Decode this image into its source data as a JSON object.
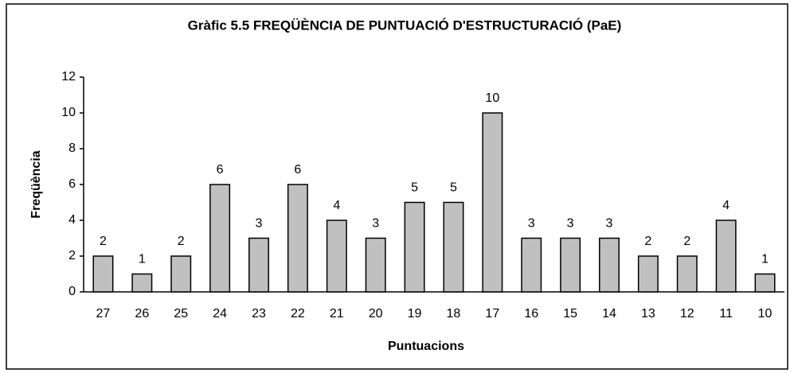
{
  "chart_data": {
    "type": "bar",
    "title": "Gràfic 5.5 FREQÜÈNCIA DE PUNTUACIÓ D'ESTRUCTURACIÓ (PaE)",
    "x_label": "Puntuacions",
    "y_label": "Freqüència",
    "categories": [
      "27",
      "26",
      "25",
      "24",
      "23",
      "22",
      "21",
      "20",
      "19",
      "18",
      "17",
      "16",
      "15",
      "14",
      "13",
      "12",
      "11",
      "10"
    ],
    "values": [
      2,
      1,
      2,
      6,
      3,
      6,
      4,
      3,
      5,
      5,
      10,
      3,
      3,
      3,
      2,
      2,
      4,
      1
    ],
    "color": "#c0c0c0",
    "ylim": [
      0,
      12
    ],
    "yticks": [
      0,
      2,
      4,
      6,
      8,
      10,
      12
    ],
    "grid": false
  }
}
